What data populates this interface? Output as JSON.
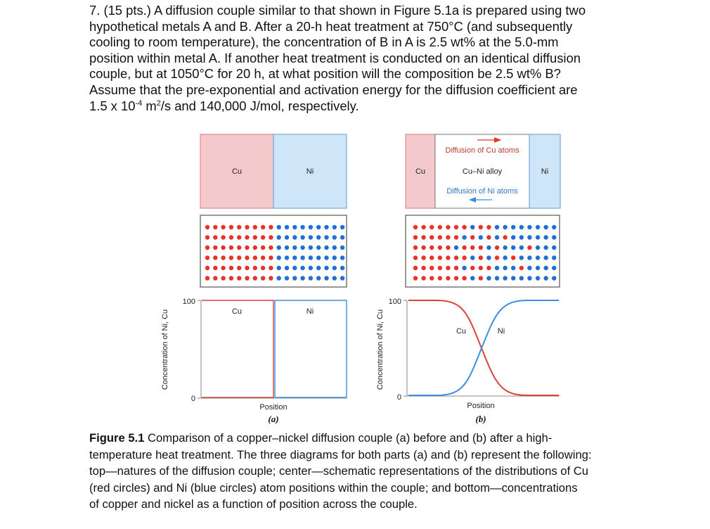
{
  "problem": {
    "lines": [
      "7. (15 pts.) A diffusion couple similar to that shown in Figure 5.1a is prepared using two",
      "hypothetical metals A and B. After a 20-h heat treatment at 750°C (and subsequently",
      "cooling to room temperature), the concentration of B in A is 2.5 wt% at the 5.0-mm",
      "position within metal A. If another heat treatment is conducted on an identical diffusion",
      "couple, but at 1050°C for 20 h, at what position will the composition be 2.5 wt% B?",
      "Assume that the pre-exponential and activation energy for the diffusion coefficient are"
    ],
    "last_line_a": "1.5 x 10",
    "exp1": "-4",
    "last_line_b": " m",
    "exp2": "2",
    "last_line_c": "/s and 140,000 J/mol, respectively."
  },
  "figure": {
    "colors": {
      "cu": "#e8332a",
      "ni": "#1f6fd6",
      "cu_fill": "#f4c9cc",
      "ni_fill": "#cfe5f8",
      "cu_line": "#d8433a",
      "ni_line": "#3a8fe0"
    },
    "a": {
      "left_label": "Cu",
      "right_label": "Ni",
      "plot_left_label": "Cu",
      "plot_right_label": "Ni",
      "y_top": "100",
      "y_bottom": "0",
      "y_axis": "Concentration of Ni, Cu",
      "x_axis": "Position",
      "panel": "(a)"
    },
    "b": {
      "left_label": "Cu",
      "mid_label": "Cu–Ni alloy",
      "right_label": "Ni",
      "diff_cu": "Diffusion of Cu atoms",
      "diff_ni": "Diffusion of Ni atoms",
      "curve_cu": "Cu",
      "curve_ni": "Ni",
      "y_top": "100",
      "y_bottom": "0",
      "y_axis": "Concentration of Ni, Cu",
      "x_axis": "Position",
      "panel": "(b)"
    },
    "atom_grid_a": [
      "RRRRRRRRRBBBBBBBBB",
      "RRRRRRRRRBBBBBBBBB",
      "RRRRRRRRRBBBBBBBBB",
      "RRRRRRRRRBBBBBBBBB",
      "RRRRRRRRRBBBBBBBBB",
      "RRRRRRRRRBBBBBBBBB"
    ],
    "atom_grid_b": [
      "RRRRRRRBRRBBBBBBBB",
      "RRRRRRBRBRBRBBBBBB",
      "RRRRRBRRRBRBBBRBBB",
      "RRRRRRRBRBRBRBBBBB",
      "RRRRRRBRRRBBBRBBBB",
      "RRRRRRRBRBBBBBBBBB"
    ]
  },
  "caption": {
    "label": "Figure 5.1",
    "lines": [
      " Comparison of a copper–nickel diffusion couple (a) before and (b) after a high-",
      "temperature heat treatment. The three diagrams for both parts (a) and (b) represent the following:",
      "top—natures of the diffusion couple; center—schematic representations of the distributions of Cu",
      "(red circles) and Ni (blue circles) atom positions within the couple; and bottom—concentrations",
      "of copper and nickel as a function of position across the couple."
    ]
  }
}
